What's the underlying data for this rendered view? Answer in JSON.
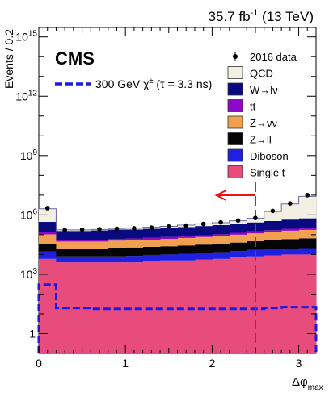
{
  "chart_data": {
    "type": "bar",
    "stacked": true,
    "experiment": "CMS",
    "lumi_label": "35.7 fb",
    "lumi_superscript": "-1",
    "energy_label": " (13 TeV)",
    "xlabel": "Δφ",
    "xlabel_sub": "max",
    "ylabel": "Events / 0.2",
    "ylog": true,
    "xlim": [
      0,
      3.2
    ],
    "ylim": [
      0.1,
      3000000000000000.0
    ],
    "x_ticks": [
      {
        "value": 0,
        "label": "0"
      },
      {
        "value": 1,
        "label": "1"
      },
      {
        "value": 2,
        "label": "2"
      },
      {
        "value": 3,
        "label": "3"
      }
    ],
    "y_ticks": [
      {
        "value": 1,
        "label": "1",
        "sup": ""
      },
      {
        "value": 1000,
        "label": "10",
        "sup": "3"
      },
      {
        "value": 1000000,
        "label": "10",
        "sup": "6"
      },
      {
        "value": 1000000000,
        "label": "10",
        "sup": "9"
      },
      {
        "value": 1000000000000,
        "label": "10",
        "sup": "12"
      },
      {
        "value": 1000000000000000,
        "label": "10",
        "sup": "15"
      }
    ],
    "bin_edges": [
      0,
      0.2,
      0.4,
      0.6,
      0.8,
      1.0,
      1.2,
      1.4,
      1.6,
      1.8,
      2.0,
      2.2,
      2.4,
      2.6,
      2.8,
      3.0,
      3.2
    ],
    "stack_order": [
      "single_t",
      "diboson",
      "z_ll",
      "z_nunu",
      "ttbar",
      "w_lnu",
      "qcd"
    ],
    "series": [
      {
        "key": "single_t",
        "name": "Single t",
        "color": "#e84c7d",
        "values": [
          6000,
          4000,
          4000,
          4000,
          4000,
          4000,
          4500,
          5000,
          5000,
          5500,
          6000,
          7000,
          8000,
          9000,
          10000,
          10000
        ]
      },
      {
        "key": "diboson",
        "name": "Diboson",
        "color": "#2020e0",
        "values": [
          8000,
          4000,
          4000,
          4000,
          4000,
          4500,
          5000,
          5000,
          5500,
          6000,
          7000,
          8000,
          9000,
          10000,
          10000,
          11000
        ]
      },
      {
        "key": "z_ll",
        "name": "Z→ll",
        "color": "#050505",
        "values": [
          20000,
          12000,
          12000,
          12000,
          14000,
          14000,
          15000,
          16000,
          18000,
          20000,
          22000,
          25000,
          30000,
          35000,
          40000,
          45000
        ]
      },
      {
        "key": "z_nunu",
        "name": "Z→νν",
        "color": "#f0a050",
        "values": [
          70000,
          25000,
          25000,
          25000,
          28000,
          30000,
          32000,
          35000,
          40000,
          45000,
          50000,
          60000,
          70000,
          80000,
          100000,
          110000
        ]
      },
      {
        "key": "ttbar",
        "name": "tt̄",
        "color": "#8e08c8",
        "values": [
          40000,
          10000,
          10000,
          10000,
          12000,
          12000,
          13000,
          15000,
          16000,
          18000,
          20000,
          25000,
          30000,
          35000,
          40000,
          45000
        ]
      },
      {
        "key": "w_lnu",
        "name": "W→lν",
        "color": "#0a0a80",
        "values": [
          300000,
          100000,
          100000,
          110000,
          120000,
          120000,
          130000,
          140000,
          160000,
          180000,
          200000,
          230000,
          270000,
          320000,
          380000,
          450000
        ]
      },
      {
        "key": "qcd",
        "name": "QCD",
        "color": "#f2f0e2",
        "values": [
          1600000,
          20000,
          20000,
          20000,
          25000,
          30000,
          40000,
          50000,
          60000,
          80000,
          100000,
          150000,
          250000,
          1000000,
          3000000,
          8000000
        ]
      }
    ],
    "data_points": {
      "name": "2016 data",
      "x": [
        0.1,
        0.3,
        0.5,
        0.7,
        0.9,
        1.1,
        1.3,
        1.5,
        1.7,
        1.9,
        2.1,
        2.3,
        2.5,
        2.7,
        2.9,
        3.1
      ],
      "y": [
        2200000,
        170000,
        180000,
        190000,
        200000,
        210000,
        230000,
        260000,
        290000,
        350000,
        420000,
        520000,
        700000,
        1600000,
        3800000,
        10000000
      ]
    },
    "signal": {
      "name": "300 GeV",
      "particle": "χ̃",
      "particle_sup": "±",
      "lifetime": "(τ = 3.3 ns)",
      "color": "#1a1ae8",
      "values": [
        300,
        20,
        20,
        18,
        18,
        18,
        18,
        18,
        18,
        18,
        18,
        18,
        18,
        20,
        22,
        22
      ]
    },
    "cut": {
      "x": 2.5,
      "color": "#ee1111"
    },
    "legend_position": "top-right"
  }
}
